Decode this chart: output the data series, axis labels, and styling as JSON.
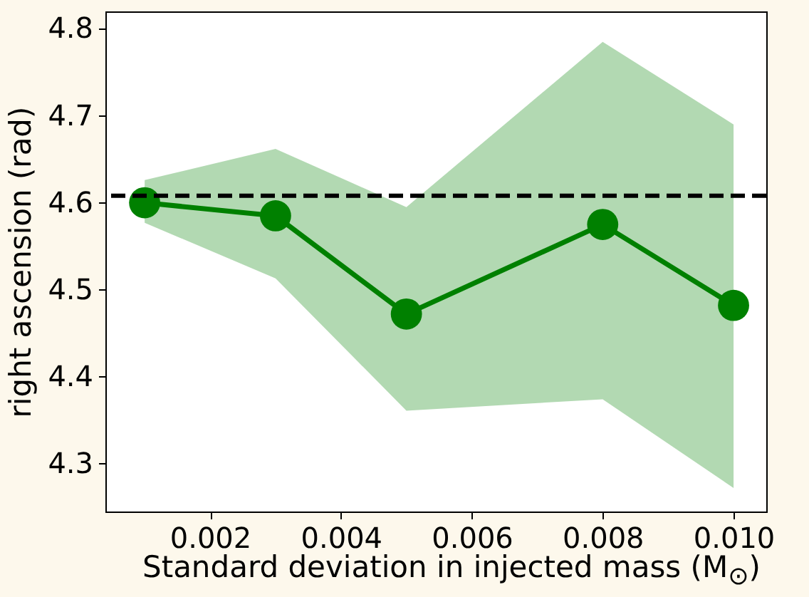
{
  "chart_data": {
    "type": "line",
    "xlabel": "Standard deviation in injected mass (M$_{⊙}$)",
    "ylabel": "right ascension (rad)",
    "x": [
      0.001,
      0.003,
      0.005,
      0.008,
      0.01
    ],
    "series": [
      {
        "color": "#008000",
        "values": [
          4.6,
          4.585,
          4.472,
          4.575,
          4.482
        ],
        "lower": [
          4.577,
          4.513,
          4.361,
          4.374,
          4.272
        ],
        "upper": [
          4.626,
          4.662,
          4.595,
          4.785,
          4.69
        ]
      }
    ],
    "ref_lines": [
      {
        "axis": "y",
        "value": 4.608,
        "color": "#000000",
        "line_style": "dashed"
      }
    ],
    "xlim": [
      0.0004,
      0.0105
    ],
    "xticks": [
      {
        "value": 0.002,
        "label": "0.002"
      },
      {
        "value": 0.004,
        "label": "0.004"
      },
      {
        "value": 0.006,
        "label": "0.006"
      },
      {
        "value": 0.008,
        "label": "0.008"
      },
      {
        "value": 0.01,
        "label": "0.010"
      }
    ],
    "ylim": [
      4.245,
      4.82
    ],
    "yticks": [
      {
        "value": 4.3,
        "label": "4.3"
      },
      {
        "value": 4.4,
        "label": "4.4"
      },
      {
        "value": 4.5,
        "label": "4.5"
      },
      {
        "value": 4.6,
        "label": "4.6"
      },
      {
        "value": 4.7,
        "label": "4.7"
      },
      {
        "value": 4.8,
        "label": "4.8"
      }
    ],
    "grid": false,
    "marker": "circle",
    "line_style": "solid"
  }
}
